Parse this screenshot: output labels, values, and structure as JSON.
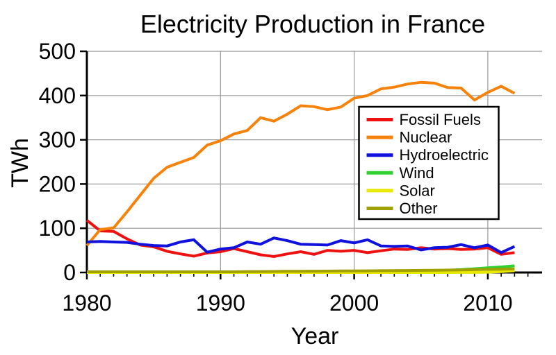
{
  "figure": {
    "background": "#ffffff",
    "axis_color": "#000000",
    "grid_color": "#999999",
    "text_color": "#000000"
  },
  "chart_data": {
    "type": "line",
    "title": "Electricity Production in France",
    "xlabel": "Year",
    "ylabel": "TWh",
    "ylim": [
      0,
      500
    ],
    "x_range": [
      1980,
      2013.5
    ],
    "y_ticks": [
      0,
      100,
      200,
      300,
      400,
      500
    ],
    "x_major_ticks": [
      1980,
      1990,
      2000,
      2010
    ],
    "x_minor_tick_interval": 1,
    "grid": true,
    "legend_position": "center-right",
    "legend_items": [
      "Fossil Fuels",
      "Nuclear",
      "Hydroelectric",
      "Wind",
      "Solar",
      "Other"
    ],
    "years": [
      1980,
      1981,
      1982,
      1983,
      1984,
      1985,
      1986,
      1987,
      1988,
      1989,
      1990,
      1991,
      1992,
      1993,
      1994,
      1995,
      1996,
      1997,
      1998,
      1999,
      2000,
      2001,
      2002,
      2003,
      2004,
      2005,
      2006,
      2007,
      2008,
      2009,
      2010,
      2011,
      2012
    ],
    "series": [
      {
        "name": "Fossil Fuels",
        "color": "#ee1111",
        "values": [
          118,
          94,
          93,
          76,
          62,
          58,
          48,
          42,
          37,
          44,
          47,
          54,
          47,
          40,
          36,
          42,
          47,
          41,
          50,
          48,
          50,
          45,
          49,
          53,
          52,
          56,
          53,
          54,
          52,
          53,
          56,
          41,
          45
        ]
      },
      {
        "name": "Nuclear",
        "color": "#f6820c",
        "values": [
          61,
          97,
          101,
          137,
          175,
          213,
          238,
          249,
          260,
          288,
          298,
          313,
          321,
          350,
          342,
          358,
          377,
          375,
          368,
          374,
          394,
          400,
          415,
          419,
          426,
          430,
          428,
          418,
          417,
          390,
          407,
          421,
          405
        ]
      },
      {
        "name": "Hydroelectric",
        "color": "#1111dd",
        "values": [
          69,
          70,
          69,
          68,
          64,
          61,
          60,
          69,
          74,
          46,
          53,
          56,
          69,
          64,
          78,
          72,
          64,
          63,
          62,
          72,
          67,
          74,
          60,
          59,
          60,
          51,
          56,
          57,
          63,
          56,
          62,
          45,
          59
        ]
      },
      {
        "name": "Wind",
        "color": "#2fd02f",
        "values": [
          0,
          0,
          0,
          0,
          0,
          0,
          0,
          0,
          0,
          0,
          0,
          0,
          1,
          1,
          1,
          1,
          1,
          1,
          1,
          1,
          1.5,
          1.5,
          2,
          2,
          2,
          2.5,
          3.5,
          5,
          6.5,
          8.5,
          10.5,
          12.5,
          15
        ]
      },
      {
        "name": "Solar",
        "color": "#e8e800",
        "values": [
          0,
          0,
          0,
          0,
          0,
          0,
          0,
          0,
          0,
          0,
          0,
          0,
          0,
          0,
          0,
          0,
          0,
          0,
          0,
          0,
          0,
          0,
          0,
          0,
          0,
          0,
          0,
          0,
          0.1,
          0.2,
          0.6,
          2,
          4
        ]
      },
      {
        "name": "Other",
        "color": "#a0a000",
        "values": [
          1.5,
          1.5,
          1.5,
          1.5,
          1.5,
          1.5,
          1.5,
          1.5,
          1.5,
          1.5,
          1.5,
          1.5,
          2,
          2.2,
          2.4,
          2.6,
          2.8,
          3,
          3.2,
          3.4,
          3.6,
          3.8,
          4,
          4.2,
          4.5,
          4.8,
          5.1,
          5.5,
          6,
          6.5,
          7,
          7.5,
          8
        ]
      }
    ]
  }
}
